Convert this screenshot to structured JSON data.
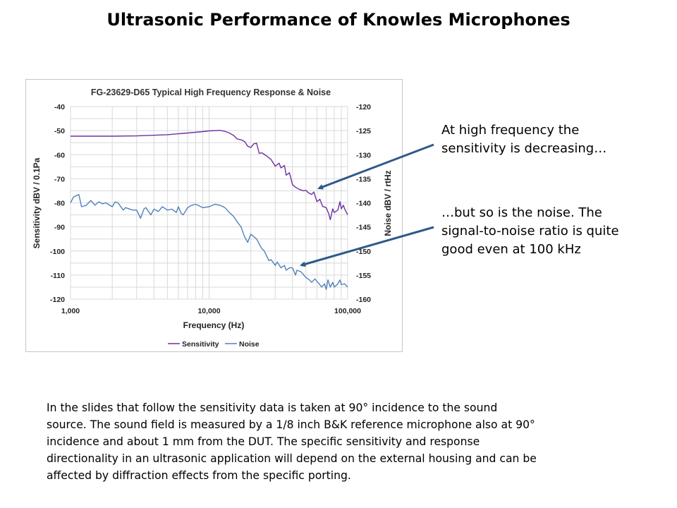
{
  "slide": {
    "title": "Ultrasonic Performance of Knowles Microphones",
    "callouts": [
      {
        "lines": [
          "At high frequency the",
          "sensitivity is decreasing…"
        ]
      },
      {
        "lines": [
          "…but so is the noise. The",
          "signal-to-noise ratio is quite",
          "good even at 100 kHz"
        ]
      }
    ],
    "body_lines": [
      "In the slides that follow the sensitivity data is taken at 90° incidence to the sound",
      "source. The sound field is measured by a 1/8 inch B&K reference microphone also at 90°",
      "incidence and about 1 mm from the DUT. The specific sensitivity and response",
      "directionality in an ultrasonic application will depend on the external housing and can be",
      "affected by diffraction effects from the specific porting."
    ],
    "arrow_color": "#2e5a88"
  },
  "chart_data": {
    "type": "line",
    "title": "FG-23629-D65 Typical High Frequency Response & Noise",
    "xlabel": "Frequency (Hz)",
    "ylabel": "Sensitivity dBV / 0.1Pa",
    "y2label": "Noise dBV / rtHz",
    "xscale": "log",
    "xlim": [
      1000,
      100000
    ],
    "ylim": [
      -120,
      -40
    ],
    "y2lim": [
      -160,
      -120
    ],
    "xticks": [
      "1,000",
      "10,000",
      "100,000"
    ],
    "yticks": [
      "-40",
      "-50",
      "-60",
      "-70",
      "-80",
      "-90",
      "-100",
      "-110",
      "-120"
    ],
    "y2ticks": [
      "-120",
      "-125",
      "-130",
      "-135",
      "-140",
      "-145",
      "-150",
      "-155",
      "-160"
    ],
    "grid": true,
    "legend_position": "bottom",
    "series": [
      {
        "name": "Sensitivity",
        "axis": "left",
        "color": "#7030a0",
        "x": [
          1000,
          2000,
          3000,
          5000,
          7000,
          9000,
          10000,
          12000,
          13000,
          14000,
          15000,
          16000,
          17000,
          18000,
          19000,
          20000,
          21000,
          22000,
          23000,
          24000,
          26000,
          28000,
          30000,
          32000,
          33000,
          35000,
          36000,
          38000,
          40000,
          42000,
          45000,
          48000,
          50000,
          52000,
          55000,
          57000,
          60000,
          63000,
          66000,
          70000,
          73000,
          75000,
          78000,
          80000,
          85000,
          88000,
          90000,
          93000,
          96000,
          100000
        ],
        "y": [
          -52.3,
          -52.3,
          -52.2,
          -51.7,
          -51.0,
          -50.4,
          -50.1,
          -49.9,
          -50.3,
          -51.0,
          -52.0,
          -53.5,
          -53.8,
          -54.5,
          -56.5,
          -57.0,
          -55.5,
          -55.2,
          -59.5,
          -59.2,
          -60.5,
          -62.0,
          -64.8,
          -63.5,
          -65.5,
          -64.5,
          -68.5,
          -67.5,
          -72.5,
          -73.5,
          -74.5,
          -75.0,
          -74.8,
          -75.8,
          -76.5,
          -75.5,
          -79.5,
          -78.5,
          -81.5,
          -82.0,
          -84.5,
          -87.0,
          -82.5,
          -84.0,
          -83.0,
          -79.5,
          -82.5,
          -81.0,
          -83.0,
          -85.0
        ]
      },
      {
        "name": "Noise",
        "axis": "right",
        "color": "#4f81bd",
        "x": [
          1000,
          1050,
          1100,
          1150,
          1200,
          1300,
          1400,
          1500,
          1600,
          1700,
          1800,
          2000,
          2100,
          2200,
          2400,
          2500,
          2800,
          3000,
          3200,
          3400,
          3500,
          3800,
          4000,
          4300,
          4600,
          5000,
          5400,
          5800,
          6000,
          6300,
          6500,
          7000,
          7500,
          8000,
          9000,
          10000,
          11000,
          12000,
          13000,
          14000,
          15000,
          16000,
          17000,
          18000,
          19000,
          20000,
          22000,
          24000,
          25000,
          27000,
          28000,
          30000,
          31000,
          33000,
          35000,
          36000,
          38000,
          40000,
          42000,
          43000,
          46000,
          50000,
          53000,
          55000,
          58000,
          60000,
          63000,
          65000,
          68000,
          70000,
          72000,
          75000,
          78000,
          80000,
          85000,
          88000,
          90000,
          95000,
          100000
        ],
        "y": [
          -140.0,
          -138.8,
          -138.5,
          -138.3,
          -140.8,
          -140.5,
          -139.5,
          -140.5,
          -139.8,
          -140.2,
          -140.0,
          -140.8,
          -139.8,
          -140.0,
          -141.5,
          -141.0,
          -141.5,
          -141.5,
          -143.2,
          -141.2,
          -141.0,
          -142.5,
          -141.3,
          -141.8,
          -140.8,
          -141.5,
          -141.3,
          -142.0,
          -140.8,
          -142.2,
          -142.5,
          -141.0,
          -140.5,
          -140.3,
          -141.0,
          -140.8,
          -140.3,
          -140.5,
          -141.0,
          -142.0,
          -142.8,
          -144.0,
          -145.0,
          -147.0,
          -148.2,
          -146.5,
          -147.5,
          -149.5,
          -150.0,
          -152.0,
          -151.8,
          -153.0,
          -152.3,
          -153.5,
          -153.0,
          -154.0,
          -153.5,
          -153.5,
          -155.0,
          -154.0,
          -154.3,
          -155.5,
          -156.0,
          -156.5,
          -155.8,
          -156.3,
          -157.0,
          -157.5,
          -156.8,
          -158.0,
          -156.0,
          -157.5,
          -156.5,
          -157.5,
          -156.8,
          -156.0,
          -157.0,
          -156.8,
          -157.5
        ]
      }
    ]
  }
}
